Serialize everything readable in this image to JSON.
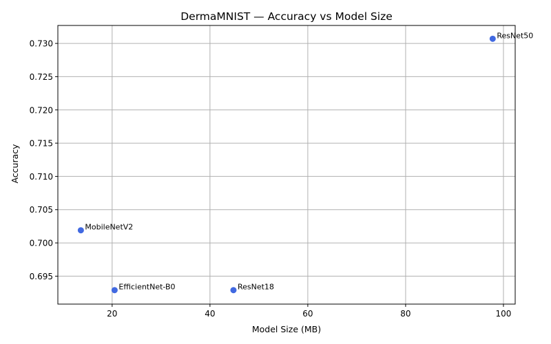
{
  "chart_data": {
    "type": "scatter",
    "title": "DermaMNIST — Accuracy vs Model Size",
    "xlabel": "Model Size (MB)",
    "ylabel": "Accuracy",
    "xlim": [
      8.9,
      102.4
    ],
    "ylim": [
      0.6908,
      0.7327
    ],
    "xticks": [
      20,
      40,
      60,
      80,
      100
    ],
    "yticks": [
      0.695,
      0.7,
      0.705,
      0.71,
      0.715,
      0.72,
      0.725,
      0.73
    ],
    "grid": true,
    "legend": "none",
    "marker_color": "#4169e1",
    "points": [
      {
        "label": "MobileNetV2",
        "x": 13.6,
        "y": 0.7019
      },
      {
        "label": "EfficientNet-B0",
        "x": 20.5,
        "y": 0.6929
      },
      {
        "label": "ResNet18",
        "x": 44.8,
        "y": 0.6929
      },
      {
        "label": "ResNet50",
        "x": 97.8,
        "y": 0.7307
      }
    ]
  }
}
